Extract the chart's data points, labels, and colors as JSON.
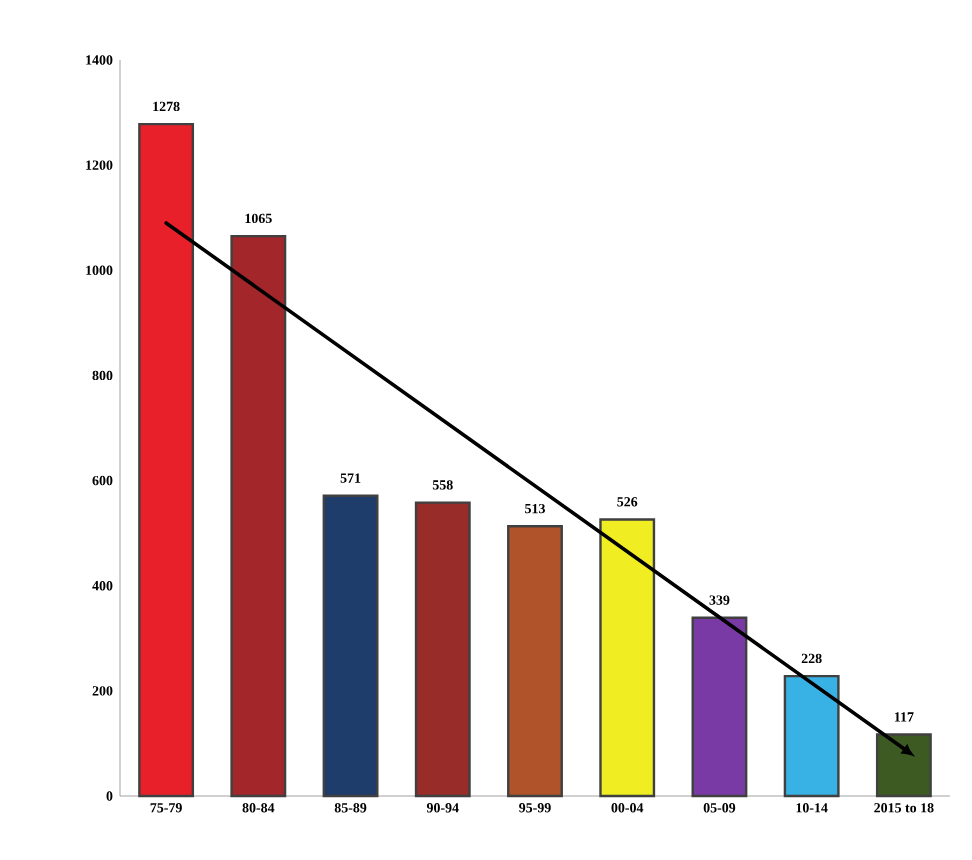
{
  "chart_data": {
    "type": "bar",
    "categories": [
      "75-79",
      "80-84",
      "85-89",
      "90-94",
      "95-99",
      "00-04",
      "05-09",
      "10-14",
      "2015 to 18"
    ],
    "values": [
      1278,
      1065,
      571,
      558,
      513,
      526,
      339,
      228,
      117
    ],
    "value_labels": [
      "1278",
      "1065",
      "571",
      "558",
      "513",
      "526",
      "339",
      "228",
      "117"
    ],
    "colors": [
      "#e8202a",
      "#a2262a",
      "#1f3d6b",
      "#982c28",
      "#b0532a",
      "#f0ee22",
      "#7a3aa6",
      "#38b2e4",
      "#3d5a22"
    ],
    "ylim": [
      0,
      1400
    ],
    "yticks": [
      0,
      200,
      400,
      600,
      800,
      1000,
      1200,
      1400
    ],
    "series": [
      {
        "type": "line",
        "x": [
          "75-79",
          "2015 to 18"
        ],
        "values": [
          1090,
          90
        ],
        "color": "#000000"
      }
    ]
  }
}
